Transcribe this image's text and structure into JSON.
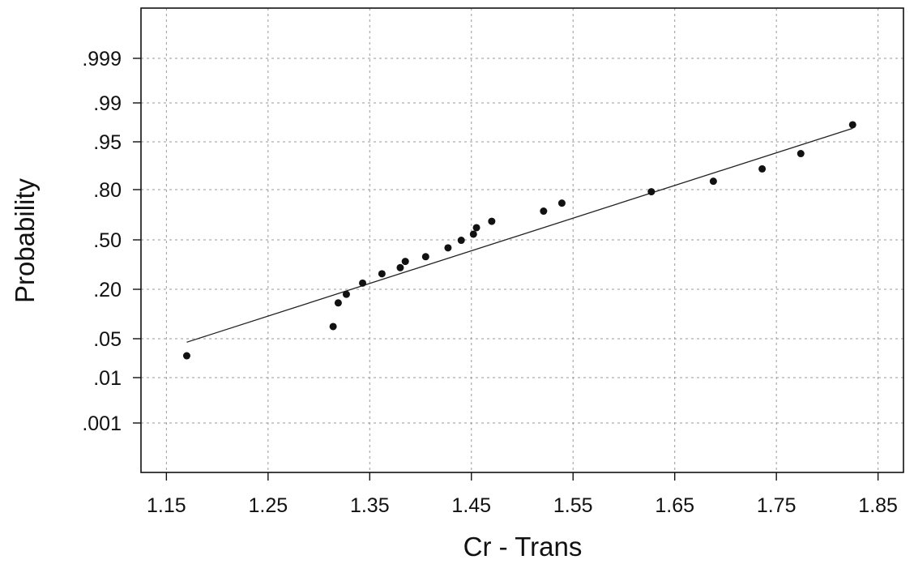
{
  "chart_data": {
    "type": "scatter",
    "xlabel": "Cr - Trans",
    "ylabel": "Probability",
    "xlim": [
      1.125,
      1.875
    ],
    "x_ticks": [
      1.15,
      1.25,
      1.35,
      1.45,
      1.55,
      1.65,
      1.75,
      1.85
    ],
    "x_tick_labels": [
      "1.15",
      "1.25",
      "1.35",
      "1.45",
      "1.55",
      "1.65",
      "1.75",
      "1.85"
    ],
    "y_scale": "normal-probability",
    "y_ticks": [
      0.001,
      0.01,
      0.05,
      0.2,
      0.5,
      0.8,
      0.95,
      0.99,
      0.999
    ],
    "y_tick_labels": [
      ".001",
      ".01",
      ".05",
      ".20",
      ".50",
      ".80",
      ".95",
      ".99",
      ".999"
    ],
    "grid": true,
    "points": [
      {
        "x": 1.17,
        "y": 0.026
      },
      {
        "x": 1.314,
        "y": 0.074
      },
      {
        "x": 1.319,
        "y": 0.144
      },
      {
        "x": 1.327,
        "y": 0.178
      },
      {
        "x": 1.343,
        "y": 0.231
      },
      {
        "x": 1.362,
        "y": 0.282
      },
      {
        "x": 1.38,
        "y": 0.318
      },
      {
        "x": 1.385,
        "y": 0.357
      },
      {
        "x": 1.405,
        "y": 0.387
      },
      {
        "x": 1.427,
        "y": 0.446
      },
      {
        "x": 1.44,
        "y": 0.497
      },
      {
        "x": 1.452,
        "y": 0.538
      },
      {
        "x": 1.455,
        "y": 0.581
      },
      {
        "x": 1.47,
        "y": 0.622
      },
      {
        "x": 1.521,
        "y": 0.685
      },
      {
        "x": 1.539,
        "y": 0.731
      },
      {
        "x": 1.627,
        "y": 0.79
      },
      {
        "x": 1.688,
        "y": 0.837
      },
      {
        "x": 1.736,
        "y": 0.883
      },
      {
        "x": 1.774,
        "y": 0.926
      },
      {
        "x": 1.825,
        "y": 0.974
      }
    ],
    "fit_line": {
      "x": [
        1.17,
        1.825
      ],
      "y": [
        0.044,
        0.97
      ]
    }
  }
}
